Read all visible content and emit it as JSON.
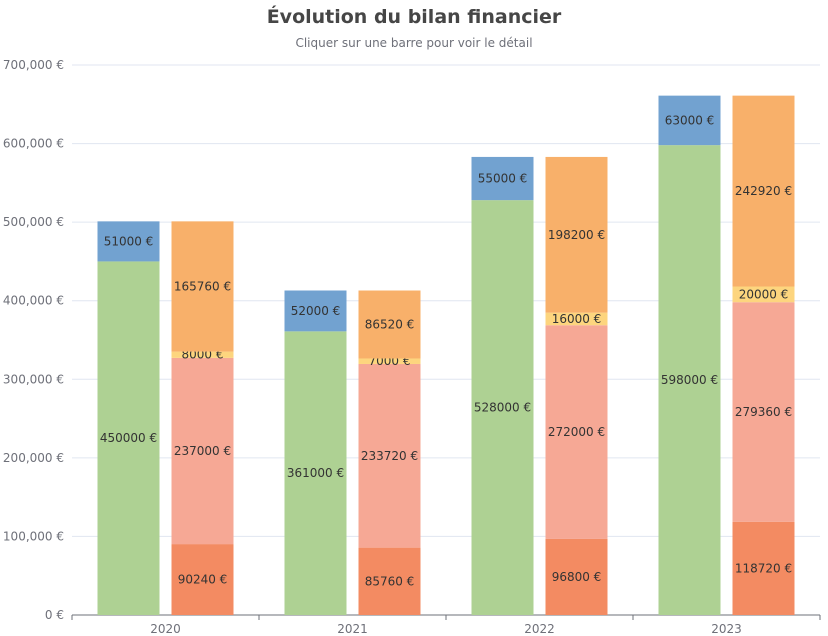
{
  "chart_data": {
    "type": "bar",
    "title": "Évolution du bilan financier",
    "subtitle": "Cliquer sur une barre pour voir le détail",
    "categories": [
      "2020",
      "2021",
      "2022",
      "2023"
    ],
    "ylim": [
      0,
      700000
    ],
    "yticks": [
      0,
      100000,
      200000,
      300000,
      400000,
      500000,
      600000,
      700000
    ],
    "ytick_labels": [
      "0 €",
      "100,000 €",
      "200,000 €",
      "300,000 €",
      "400,000 €",
      "500,000 €",
      "600,000 €",
      "700,000 €"
    ],
    "grid": true,
    "stacks": [
      {
        "id": "left",
        "series": [
          {
            "values": [
              450000,
              361000,
              528000,
              598000
            ],
            "color": "#aed193"
          },
          {
            "values": [
              51000,
              52000,
              55000,
              63000
            ],
            "color": "#72a2d0"
          }
        ]
      },
      {
        "id": "right",
        "series": [
          {
            "values": [
              90240,
              85760,
              96800,
              118720
            ],
            "color": "#f38b62"
          },
          {
            "values": [
              237000,
              233720,
              272000,
              279360
            ],
            "color": "#f6a895"
          },
          {
            "values": [
              8000,
              7000,
              16000,
              20000
            ],
            "color": "#fdd57e"
          },
          {
            "values": [
              165760,
              86520,
              198200,
              242920
            ],
            "color": "#f8b06a"
          }
        ]
      }
    ],
    "label_suffix": " €"
  }
}
